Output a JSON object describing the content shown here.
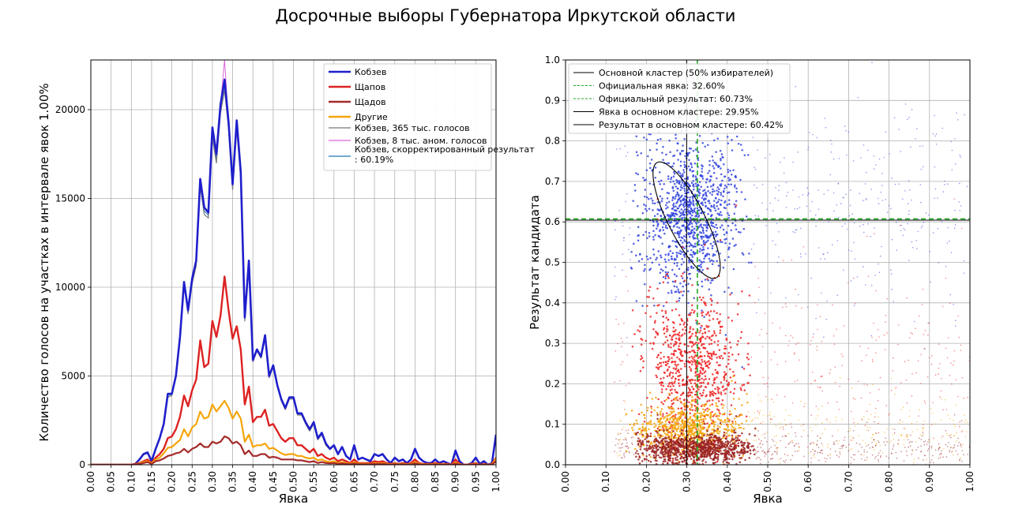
{
  "figure": {
    "suptitle": "Досрочные выборы Губернатора Иркутской области"
  },
  "chart_data": [
    {
      "type": "line",
      "xlabel": "Явка",
      "ylabel": "Количество голосов на участках в интервале явок 1.00%",
      "xlim": [
        0,
        1
      ],
      "ylim": [
        0,
        22800
      ],
      "xticks": [
        "0.00",
        "0.05",
        "0.10",
        "0.15",
        "0.20",
        "0.25",
        "0.30",
        "0.35",
        "0.40",
        "0.45",
        "0.50",
        "0.55",
        "0.60",
        "0.65",
        "0.70",
        "0.75",
        "0.80",
        "0.85",
        "0.90",
        "0.95",
        "1.00"
      ],
      "yticks": [
        "0",
        "5000",
        "10000",
        "15000",
        "20000"
      ],
      "grid": true,
      "legend_position": "top-right",
      "x": [
        0.0,
        0.01,
        0.02,
        0.03,
        0.04,
        0.05,
        0.06,
        0.07,
        0.08,
        0.09,
        0.1,
        0.11,
        0.12,
        0.13,
        0.14,
        0.15,
        0.16,
        0.17,
        0.18,
        0.19,
        0.2,
        0.21,
        0.22,
        0.23,
        0.24,
        0.25,
        0.26,
        0.27,
        0.28,
        0.29,
        0.3,
        0.31,
        0.32,
        0.33,
        0.34,
        0.35,
        0.36,
        0.37,
        0.38,
        0.39,
        0.4,
        0.41,
        0.42,
        0.43,
        0.44,
        0.45,
        0.46,
        0.47,
        0.48,
        0.49,
        0.5,
        0.51,
        0.52,
        0.53,
        0.54,
        0.55,
        0.56,
        0.57,
        0.58,
        0.59,
        0.6,
        0.61,
        0.62,
        0.63,
        0.64,
        0.65,
        0.66,
        0.67,
        0.68,
        0.69,
        0.7,
        0.71,
        0.72,
        0.73,
        0.74,
        0.75,
        0.76,
        0.77,
        0.78,
        0.79,
        0.8,
        0.81,
        0.82,
        0.83,
        0.84,
        0.85,
        0.86,
        0.87,
        0.88,
        0.89,
        0.9,
        0.91,
        0.92,
        0.93,
        0.94,
        0.95,
        0.96,
        0.97,
        0.98,
        0.99,
        1.0
      ],
      "series": [
        {
          "name": "Кобзев",
          "color": "#1f1fcc",
          "width": 2.6,
          "values": [
            0,
            0,
            0,
            0,
            0,
            0,
            0,
            0,
            0,
            0,
            0,
            50,
            300,
            600,
            700,
            200,
            900,
            1500,
            2300,
            4000,
            4000,
            5000,
            7200,
            10300,
            8700,
            10500,
            11500,
            16100,
            14500,
            14200,
            19000,
            17500,
            20300,
            21700,
            19300,
            15800,
            19400,
            16500,
            8300,
            11500,
            5900,
            6500,
            6100,
            7300,
            5000,
            5600,
            4500,
            3700,
            3200,
            3800,
            3800,
            2900,
            2900,
            2400,
            2000,
            2400,
            1500,
            1800,
            1200,
            900,
            1100,
            600,
            1000,
            500,
            300,
            1100,
            300,
            400,
            300,
            200,
            600,
            500,
            600,
            300,
            100,
            400,
            200,
            300,
            100,
            300,
            900,
            400,
            200,
            100,
            100,
            300,
            100,
            200,
            100,
            0,
            800,
            200,
            0,
            0,
            100,
            400,
            50,
            200,
            0,
            100,
            1700
          ]
        },
        {
          "name": "Щапов",
          "color": "#dd2222",
          "width": 2.4,
          "values": [
            0,
            0,
            0,
            0,
            0,
            0,
            0,
            0,
            0,
            0,
            0,
            50,
            100,
            200,
            300,
            100,
            400,
            600,
            900,
            1500,
            1600,
            2000,
            2700,
            3900,
            3300,
            4200,
            4800,
            7000,
            5500,
            5700,
            8100,
            7200,
            8400,
            10600,
            8700,
            7100,
            7800,
            6500,
            3400,
            4400,
            2400,
            2700,
            2700,
            3100,
            2200,
            2300,
            1900,
            1500,
            1300,
            1500,
            1500,
            1100,
            1100,
            900,
            700,
            900,
            500,
            600,
            400,
            300,
            400,
            200,
            300,
            200,
            100,
            300,
            100,
            100,
            100,
            100,
            200,
            150,
            200,
            100,
            50,
            100,
            50,
            100,
            50,
            100,
            300,
            100,
            50,
            50,
            50,
            100,
            50,
            50,
            50,
            0,
            300,
            50,
            0,
            0,
            50,
            100,
            0,
            50,
            0,
            50,
            400
          ]
        },
        {
          "name": "Щадов",
          "color": "#a52a2a",
          "width": 2.2,
          "values": [
            0,
            0,
            0,
            0,
            0,
            0,
            0,
            0,
            0,
            0,
            0,
            20,
            50,
            100,
            150,
            50,
            200,
            250,
            350,
            500,
            550,
            650,
            700,
            900,
            700,
            900,
            1000,
            1200,
            1000,
            1000,
            1300,
            1200,
            1300,
            1600,
            1500,
            1200,
            1300,
            1100,
            600,
            800,
            500,
            500,
            600,
            600,
            400,
            450,
            400,
            300,
            300,
            300,
            300,
            250,
            250,
            200,
            150,
            200,
            100,
            150,
            100,
            80,
            100,
            50,
            80,
            50,
            30,
            80,
            30,
            30,
            30,
            20,
            50,
            40,
            50,
            30,
            10,
            30,
            20,
            20,
            10,
            20,
            80,
            30,
            10,
            10,
            10,
            20,
            10,
            10,
            10,
            0,
            60,
            10,
            0,
            0,
            10,
            30,
            0,
            10,
            0,
            10,
            200
          ]
        },
        {
          "name": "Другие",
          "color": "#f5a50a",
          "width": 2.2,
          "values": [
            0,
            0,
            0,
            0,
            0,
            0,
            0,
            0,
            0,
            0,
            0,
            30,
            80,
            150,
            200,
            80,
            300,
            400,
            650,
            950,
            1000,
            1200,
            1400,
            2000,
            1600,
            2100,
            2300,
            3000,
            2600,
            2700,
            3400,
            3000,
            3300,
            3600,
            3200,
            2600,
            3000,
            2600,
            1300,
            1700,
            1000,
            1100,
            1100,
            1200,
            900,
            950,
            800,
            650,
            550,
            600,
            600,
            500,
            500,
            400,
            350,
            400,
            250,
            300,
            200,
            150,
            200,
            100,
            150,
            100,
            60,
            150,
            60,
            60,
            60,
            40,
            100,
            80,
            100,
            60,
            20,
            60,
            40,
            50,
            20,
            50,
            150,
            60,
            30,
            20,
            20,
            50,
            20,
            30,
            20,
            0,
            120,
            30,
            0,
            0,
            20,
            60,
            0,
            30,
            0,
            20,
            350
          ]
        },
        {
          "name": "Кобзев, 365 тыс. голосов",
          "color": "#777777",
          "width": 1.2,
          "values": [
            0,
            0,
            0,
            0,
            0,
            0,
            0,
            0,
            0,
            0,
            0,
            50,
            280,
            560,
            650,
            200,
            850,
            1450,
            2200,
            3800,
            3900,
            4900,
            7000,
            10100,
            8500,
            10200,
            11200,
            15700,
            14100,
            13900,
            18400,
            17000,
            19800,
            21100,
            18900,
            15500,
            18900,
            16100,
            8100,
            11300,
            5800,
            6400,
            6000,
            7100,
            4900,
            5500,
            4400,
            3600,
            3100,
            3700,
            3700,
            2800,
            2800,
            2300,
            1900,
            2300,
            1400,
            1700,
            1100,
            850,
            1050,
            550,
            950,
            450,
            280,
            1050,
            280,
            380,
            280,
            190,
            570,
            470,
            570,
            280,
            90,
            380,
            190,
            280,
            90,
            280,
            850,
            380,
            190,
            90,
            90,
            280,
            90,
            190,
            90,
            0,
            750,
            190,
            0,
            0,
            90,
            380,
            45,
            190,
            0,
            90,
            1600
          ]
        },
        {
          "name": "Кобзев, 8 тыс. аном. голосов",
          "color": "#d966d9",
          "width": 1.0,
          "values": [
            0,
            0,
            0,
            0,
            0,
            0,
            0,
            0,
            0,
            0,
            0,
            50,
            300,
            600,
            700,
            200,
            900,
            1500,
            2300,
            4000,
            4000,
            5000,
            7200,
            10300,
            8700,
            10500,
            11500,
            16100,
            14500,
            14200,
            19000,
            17500,
            20300,
            22800,
            19300,
            15800,
            19400,
            16500,
            8300,
            11500,
            5900,
            6500,
            6100,
            7300,
            5000,
            5600,
            4500,
            3700,
            3200,
            3800,
            3800,
            2900,
            2900,
            2400,
            2000,
            2400,
            1500,
            1800,
            1200,
            900,
            1100,
            600,
            1000,
            500,
            300,
            1100,
            300,
            400,
            300,
            200,
            600,
            500,
            600,
            300,
            100,
            400,
            200,
            300,
            100,
            300,
            900,
            400,
            200,
            100,
            100,
            300,
            100,
            200,
            100,
            0,
            800,
            200,
            0,
            0,
            100,
            400,
            50,
            200,
            0,
            100,
            1700
          ]
        },
        {
          "name": "Кобзев, скорректированный результат: 60.19%",
          "color": "#1f77b4",
          "width": 1.0,
          "values": [
            0,
            0,
            0,
            0,
            0,
            0,
            0,
            0,
            0,
            0,
            0,
            50,
            290,
            580,
            680,
            200,
            880,
            1480,
            2250,
            3900,
            3950,
            4950,
            7100,
            10200,
            8600,
            10350,
            11350,
            15900,
            14300,
            14050,
            18700,
            17250,
            20050,
            21400,
            19100,
            15650,
            19150,
            16300,
            8200,
            11400,
            5850,
            6450,
            6050,
            7200,
            4950,
            5550,
            4450,
            3650,
            3150,
            3750,
            3750,
            2850,
            2850,
            2350,
            1950,
            2350,
            1450,
            1750,
            1150,
            880,
            1080,
            580,
            980,
            480,
            290,
            1080,
            290,
            390,
            290,
            195,
            590,
            490,
            590,
            290,
            95,
            390,
            195,
            290,
            95,
            290,
            880,
            390,
            195,
            95,
            95,
            290,
            95,
            195,
            95,
            0,
            780,
            195,
            0,
            0,
            95,
            390,
            48,
            195,
            0,
            95,
            1650
          ]
        }
      ]
    },
    {
      "type": "scatter",
      "xlabel": "Явка",
      "ylabel": "Результат кандидата",
      "xlim": [
        0,
        1
      ],
      "ylim": [
        0,
        1
      ],
      "xticks": [
        "0.00",
        "0.10",
        "0.20",
        "0.30",
        "0.40",
        "0.50",
        "0.60",
        "0.70",
        "0.80",
        "0.90",
        "1.00"
      ],
      "yticks": [
        "0.0",
        "0.1",
        "0.2",
        "0.3",
        "0.4",
        "0.5",
        "0.6",
        "0.7",
        "0.8",
        "0.9",
        "1.0"
      ],
      "grid": true,
      "legend_position": "top-left",
      "clusters": [
        {
          "candidate": "Кобзев",
          "color": "#3344dd",
          "n": 1400,
          "center": [
            0.31,
            0.62
          ],
          "spread": [
            0.05,
            0.09
          ],
          "tail": 0.35
        },
        {
          "candidate": "Щапов",
          "color": "#ee2222",
          "n": 1100,
          "center": [
            0.31,
            0.24
          ],
          "spread": [
            0.05,
            0.09
          ],
          "tail": 0.35
        },
        {
          "candidate": "Другие",
          "color": "#f5a50a",
          "n": 900,
          "center": [
            0.3,
            0.09
          ],
          "spread": [
            0.06,
            0.03
          ],
          "tail": 0.35
        },
        {
          "candidate": "Щадов",
          "color": "#9b2222",
          "n": 1300,
          "center": [
            0.32,
            0.04
          ],
          "spread": [
            0.07,
            0.018
          ],
          "tail": 0.35
        }
      ],
      "ellipse": {
        "center": [
          0.2995,
          0.6042
        ],
        "semi_axes": [
          0.16,
          0.045
        ],
        "angle_deg": -63,
        "color": "#000000"
      },
      "reference_lines": [
        {
          "label": "Основной кластер (50% избирателей)",
          "kind": "ellipse",
          "color": "#000000",
          "style": "solid"
        },
        {
          "label": "Официальная явка: 32.60%",
          "kind": "vline",
          "value": 0.326,
          "color": "#22aa22",
          "style": "dashed"
        },
        {
          "label": "Официальный результат: 60.73%",
          "kind": "hline",
          "value": 0.6073,
          "color": "#22aa22",
          "style": "dashed"
        },
        {
          "label": "Явка в основном кластере: 29.95%",
          "kind": "vline",
          "value": 0.2995,
          "color": "#000000",
          "style": "solid"
        },
        {
          "label": "Результат в основном кластере: 60.42%",
          "kind": "hline",
          "value": 0.6042,
          "color": "#000000",
          "style": "solid"
        }
      ]
    }
  ]
}
